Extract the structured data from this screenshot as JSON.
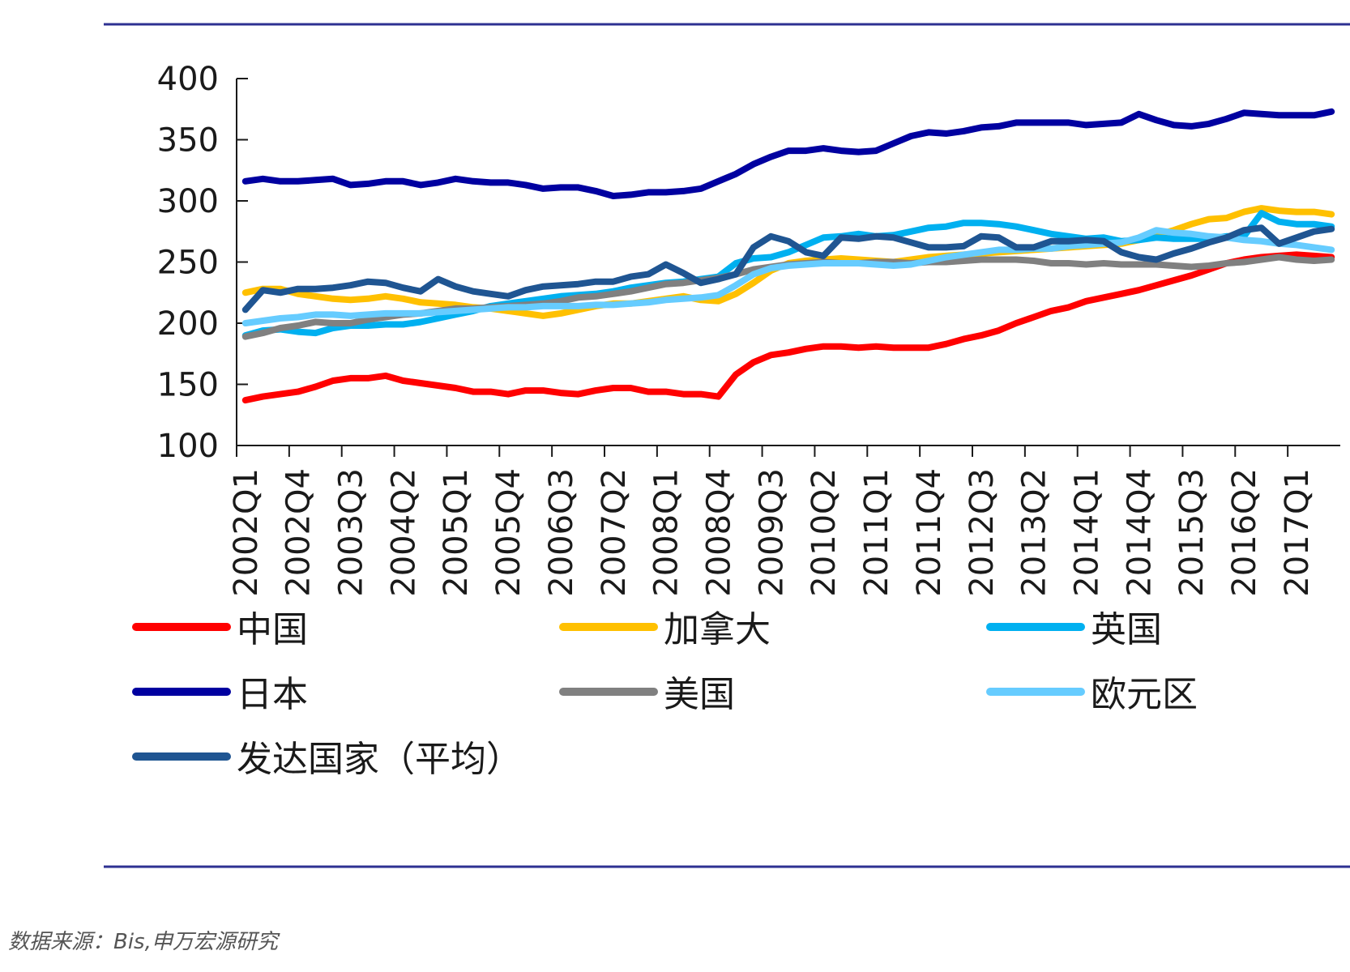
{
  "source": "数据来源：Bis,申万宏源研究",
  "colors": {
    "rule": "#2e3192",
    "axis": "#1a1a1a"
  },
  "chart_data": {
    "type": "line",
    "ylim": [
      100,
      400
    ],
    "yticks": [
      100,
      150,
      200,
      250,
      300,
      350,
      400
    ],
    "xlabel": "",
    "ylabel": "",
    "legend_position": "bottom",
    "x": [
      "2002Q1",
      "2002Q2",
      "2002Q3",
      "2002Q4",
      "2003Q1",
      "2003Q2",
      "2003Q3",
      "2003Q4",
      "2004Q1",
      "2004Q2",
      "2004Q3",
      "2004Q4",
      "2005Q1",
      "2005Q2",
      "2005Q3",
      "2005Q4",
      "2006Q1",
      "2006Q2",
      "2006Q3",
      "2006Q4",
      "2007Q1",
      "2007Q2",
      "2007Q3",
      "2007Q4",
      "2008Q1",
      "2008Q2",
      "2008Q3",
      "2008Q4",
      "2009Q1",
      "2009Q2",
      "2009Q3",
      "2009Q4",
      "2010Q1",
      "2010Q2",
      "2010Q3",
      "2010Q4",
      "2011Q1",
      "2011Q2",
      "2011Q3",
      "2011Q4",
      "2012Q1",
      "2012Q2",
      "2012Q3",
      "2012Q4",
      "2013Q1",
      "2013Q2",
      "2013Q3",
      "2013Q4",
      "2014Q1",
      "2014Q2",
      "2014Q3",
      "2014Q4",
      "2015Q1",
      "2015Q2",
      "2015Q3",
      "2015Q4",
      "2016Q1",
      "2016Q2",
      "2016Q3",
      "2016Q4",
      "2017Q1",
      "2017Q2",
      "2017Q3"
    ],
    "xtick_labels": [
      "2002Q1",
      "2002Q4",
      "2003Q3",
      "2004Q2",
      "2005Q1",
      "2005Q4",
      "2006Q3",
      "2007Q2",
      "2008Q1",
      "2008Q4",
      "2009Q3",
      "2010Q2",
      "2011Q1",
      "2011Q4",
      "2012Q3",
      "2013Q2",
      "2014Q1",
      "2014Q4",
      "2015Q3",
      "2016Q2",
      "2017Q1"
    ],
    "series": [
      {
        "name": "中国",
        "color": "#ff0000",
        "values": [
          137,
          140,
          142,
          144,
          148,
          153,
          155,
          155,
          157,
          153,
          151,
          149,
          147,
          144,
          144,
          142,
          145,
          145,
          143,
          142,
          145,
          147,
          147,
          144,
          144,
          142,
          142,
          140,
          158,
          168,
          174,
          176,
          179,
          181,
          181,
          180,
          181,
          180,
          180,
          180,
          183,
          187,
          190,
          194,
          200,
          205,
          210,
          213,
          218,
          221,
          224,
          227,
          231,
          235,
          239,
          244,
          249,
          252,
          254,
          255,
          256,
          255,
          254
        ]
      },
      {
        "name": "加拿大",
        "color": "#ffc000",
        "values": [
          225,
          228,
          228,
          224,
          222,
          220,
          219,
          220,
          222,
          220,
          217,
          216,
          215,
          213,
          212,
          210,
          208,
          206,
          208,
          211,
          214,
          216,
          216,
          218,
          220,
          222,
          219,
          218,
          224,
          233,
          243,
          249,
          251,
          252,
          253,
          252,
          251,
          250,
          252,
          254,
          255,
          256,
          257,
          258,
          259,
          260,
          261,
          262,
          263,
          264,
          265,
          268,
          272,
          276,
          281,
          285,
          286,
          291,
          294,
          292,
          291,
          291,
          289
        ]
      },
      {
        "name": "英国",
        "color": "#00b0f0",
        "values": [
          190,
          194,
          195,
          193,
          192,
          196,
          198,
          198,
          199,
          199,
          201,
          204,
          207,
          210,
          214,
          216,
          218,
          220,
          222,
          223,
          224,
          226,
          229,
          231,
          233,
          234,
          236,
          238,
          249,
          253,
          254,
          258,
          264,
          270,
          271,
          273,
          271,
          272,
          275,
          278,
          279,
          282,
          282,
          281,
          279,
          276,
          273,
          271,
          269,
          270,
          267,
          268,
          270,
          269,
          269,
          269,
          271,
          271,
          290,
          283,
          281,
          281,
          279
        ]
      },
      {
        "name": "日本",
        "color": "#0000a0",
        "values": [
          316,
          318,
          316,
          316,
          317,
          318,
          313,
          314,
          316,
          316,
          313,
          315,
          318,
          316,
          315,
          315,
          313,
          310,
          311,
          311,
          308,
          304,
          305,
          307,
          307,
          308,
          310,
          316,
          322,
          330,
          336,
          341,
          341,
          343,
          341,
          340,
          341,
          347,
          353,
          356,
          355,
          357,
          360,
          361,
          364,
          364,
          364,
          364,
          362,
          363,
          364,
          371,
          366,
          362,
          361,
          363,
          367,
          372,
          371,
          370,
          370,
          370,
          373
        ]
      },
      {
        "name": "美国",
        "color": "#808080",
        "values": [
          189,
          192,
          196,
          198,
          201,
          200,
          200,
          203,
          205,
          207,
          208,
          210,
          212,
          212,
          213,
          214,
          215,
          216,
          218,
          221,
          222,
          224,
          226,
          229,
          232,
          233,
          235,
          237,
          240,
          244,
          246,
          248,
          249,
          250,
          249,
          249,
          250,
          250,
          249,
          250,
          250,
          251,
          252,
          252,
          252,
          251,
          249,
          249,
          248,
          249,
          248,
          248,
          248,
          247,
          246,
          247,
          249,
          250,
          252,
          254,
          252,
          251,
          252
        ]
      },
      {
        "name": "欧元区",
        "color": "#66ccff",
        "values": [
          200,
          202,
          204,
          205,
          207,
          207,
          206,
          207,
          208,
          208,
          208,
          209,
          210,
          211,
          212,
          213,
          213,
          214,
          214,
          214,
          215,
          215,
          216,
          217,
          219,
          220,
          221,
          223,
          231,
          240,
          245,
          247,
          248,
          249,
          249,
          249,
          248,
          247,
          248,
          251,
          254,
          256,
          258,
          260,
          260,
          261,
          261,
          263,
          264,
          265,
          266,
          270,
          276,
          274,
          273,
          271,
          270,
          268,
          267,
          265,
          264,
          262,
          260
        ]
      },
      {
        "name": "发达国家（平均）",
        "color": "#1f5592",
        "values": [
          211,
          227,
          225,
          228,
          228,
          229,
          231,
          234,
          233,
          229,
          226,
          236,
          230,
          226,
          224,
          222,
          227,
          230,
          231,
          232,
          234,
          234,
          238,
          240,
          248,
          241,
          233,
          236,
          240,
          262,
          271,
          267,
          258,
          255,
          270,
          269,
          271,
          270,
          266,
          262,
          262,
          263,
          271,
          270,
          262,
          262,
          267,
          267,
          268,
          267,
          258,
          254,
          252,
          257,
          261,
          266,
          270,
          276,
          278,
          265,
          270,
          275,
          277
        ]
      }
    ]
  }
}
